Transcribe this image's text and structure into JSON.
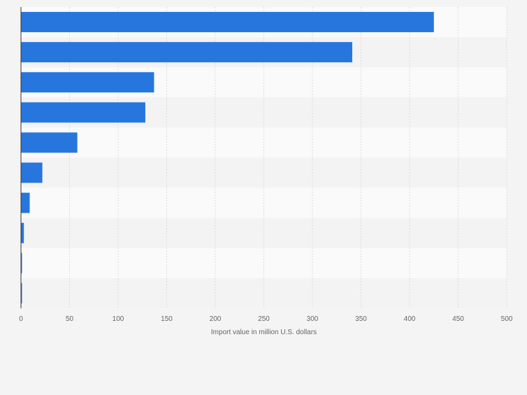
{
  "chart_data": {
    "type": "bar",
    "orientation": "horizontal",
    "categories": [
      "",
      "",
      "",
      "",
      "",
      "",
      "",
      "",
      "",
      ""
    ],
    "values": [
      425,
      341,
      137,
      128,
      58,
      22,
      9,
      3,
      0.5,
      0.5
    ],
    "title": "",
    "xlabel": "Import value in million U.S. dollars",
    "ylabel": "",
    "xlim": [
      0,
      500
    ],
    "x_ticks": [
      0,
      50,
      100,
      150,
      200,
      250,
      300,
      350,
      400,
      450,
      500
    ],
    "x_tick_labels": [
      "0",
      "50",
      "100",
      "150",
      "200",
      "250",
      "300",
      "350",
      "400",
      "450",
      "500"
    ],
    "grid": true,
    "legend": "none",
    "colors": {
      "bar": "#2776dd",
      "band_light": "#fafafa",
      "band_dark": "#f3f3f3",
      "page_background": "#f4f4f4",
      "gridline": "#dcdcdc",
      "axis_line": "#333333",
      "tick_text": "#666666"
    }
  }
}
